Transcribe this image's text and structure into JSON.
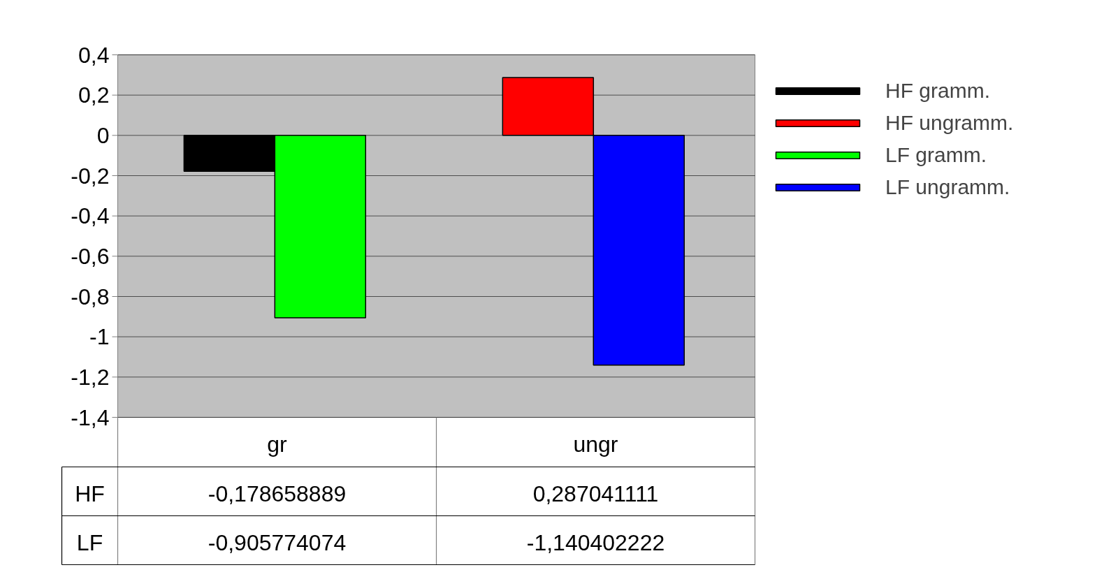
{
  "chart_data": {
    "type": "bar",
    "categories": [
      "gr",
      "ungr"
    ],
    "series": [
      {
        "name": "HF gramm.",
        "color": "#000000",
        "values": [
          -0.178658889,
          null
        ]
      },
      {
        "name": "HF ungramm.",
        "color": "#ff0000",
        "values": [
          null,
          0.287041111
        ]
      },
      {
        "name": "LF gramm.",
        "color": "#00ff00",
        "values": [
          -0.905774074,
          null
        ]
      },
      {
        "name": "LF ungramm.",
        "color": "#0000ff",
        "values": [
          null,
          -1.140402222
        ]
      }
    ],
    "value_labels": [
      [
        "-0,178658889",
        "0,287041111"
      ],
      [
        "-0,905774074",
        "-1,140402222"
      ]
    ],
    "annotations": [
      "HF",
      "LF"
    ],
    "ylim": [
      -1.4,
      0.4
    ],
    "yticks": [
      {
        "value": -1.4,
        "label": "-1,4"
      },
      {
        "value": -1.2,
        "label": "-1,2"
      },
      {
        "value": -1,
        "label": "-1"
      },
      {
        "value": -0.8,
        "label": "-0,8"
      },
      {
        "value": -0.6,
        "label": "-0,6"
      },
      {
        "value": -0.4,
        "label": "-0,4"
      },
      {
        "value": -0.2,
        "label": "-0,2"
      },
      {
        "value": 0,
        "label": "0"
      },
      {
        "value": 0.2,
        "label": "0,2"
      },
      {
        "value": 0.4,
        "label": "0,4"
      }
    ],
    "grid": "y",
    "legend": "right"
  }
}
